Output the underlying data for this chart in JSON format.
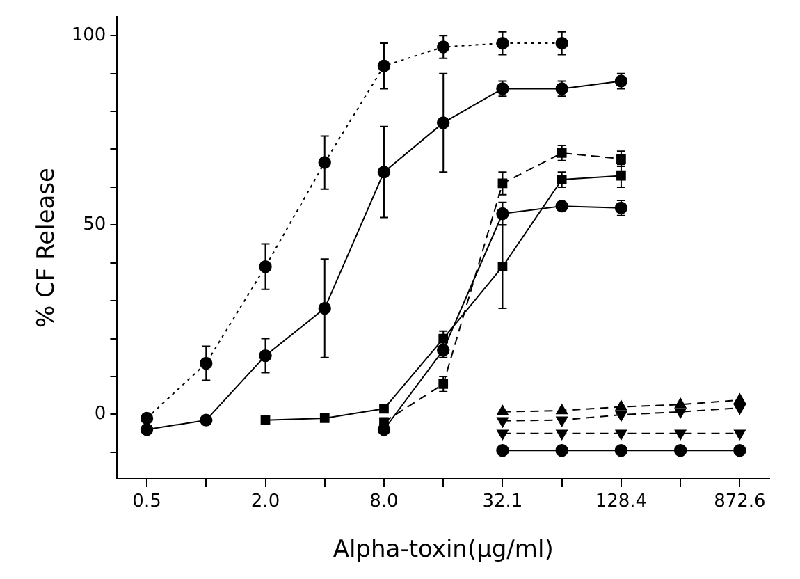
{
  "chart_data": {
    "type": "line",
    "xlabel": "Alpha-toxin(μg/ml)",
    "ylabel": "% CF Release",
    "categories": [
      "0.5",
      null,
      "2.0",
      null,
      "8.0",
      null,
      "32.1",
      null,
      "128.4",
      null,
      "872.6"
    ],
    "ylim": [
      -17,
      105
    ],
    "yticks": [
      {
        "value": -10,
        "label": null
      },
      0,
      {
        "value": 10,
        "label": null
      },
      {
        "value": 20,
        "label": null
      },
      {
        "value": 30,
        "label": null
      },
      {
        "value": 40,
        "label": null
      },
      50,
      {
        "value": 60,
        "label": null
      },
      {
        "value": 70,
        "label": null
      },
      {
        "value": 80,
        "label": null
      },
      {
        "value": 90,
        "label": null
      },
      100
    ],
    "grid": false,
    "legend": false,
    "series": [
      {
        "color": "#000000",
        "marker": "circle",
        "line_style": "dotted",
        "values": [
          -1,
          13.5,
          39,
          66.5,
          92,
          97,
          98,
          98,
          null,
          null,
          null
        ],
        "errors": [
          null,
          4.5,
          6,
          7,
          6,
          3,
          3,
          3,
          null,
          null,
          null
        ]
      },
      {
        "color": "#000000",
        "marker": "circle",
        "line_style": "solid",
        "values": [
          -4,
          -1.5,
          15.5,
          28,
          64,
          77,
          86,
          86,
          88,
          null,
          null
        ],
        "errors": [
          null,
          null,
          4.5,
          13,
          12,
          13,
          2,
          2,
          2,
          null,
          null
        ]
      },
      {
        "color": "#000000",
        "marker": "square",
        "line_style": "solid",
        "values": [
          null,
          null,
          -1.5,
          -1,
          1.5,
          20,
          39,
          62,
          63,
          null,
          null
        ],
        "errors": [
          null,
          null,
          null,
          null,
          null,
          2,
          11,
          2,
          3,
          null,
          null
        ]
      },
      {
        "color": "#000000",
        "marker": "square",
        "line_style": "dashed",
        "values": [
          null,
          null,
          null,
          null,
          -2,
          8,
          61,
          69,
          67.5,
          null,
          null
        ],
        "errors": [
          null,
          null,
          null,
          null,
          null,
          2,
          3,
          2,
          2,
          null,
          null
        ]
      },
      {
        "color": "#000000",
        "marker": "circle",
        "line_style": "solid",
        "values": [
          null,
          null,
          null,
          null,
          -4,
          17,
          53,
          55,
          54.5,
          null,
          null
        ],
        "errors": [
          null,
          null,
          null,
          null,
          null,
          2,
          3,
          null,
          2,
          null,
          null
        ]
      },
      {
        "color": "#000000",
        "marker": "triangle",
        "line_style": "dashed",
        "values": [
          null,
          null,
          null,
          null,
          null,
          null,
          0.7,
          1,
          2,
          2.6,
          3.8
        ]
      },
      {
        "color": "#000000",
        "marker": "triangle-down",
        "line_style": "dashed",
        "values": [
          null,
          null,
          null,
          null,
          null,
          null,
          -1.7,
          -1.5,
          -0.1,
          0.7,
          1.7
        ]
      },
      {
        "color": "#000000",
        "marker": "triangle-down",
        "line_style": "dashed",
        "values": [
          null,
          null,
          null,
          null,
          null,
          null,
          -5,
          -5,
          -5,
          -5,
          -5
        ]
      },
      {
        "color": "#000000",
        "marker": "circle",
        "line_style": "solid",
        "values": [
          null,
          null,
          null,
          null,
          null,
          null,
          -9.5,
          -9.5,
          -9.5,
          -9.5,
          -9.5
        ]
      }
    ]
  }
}
